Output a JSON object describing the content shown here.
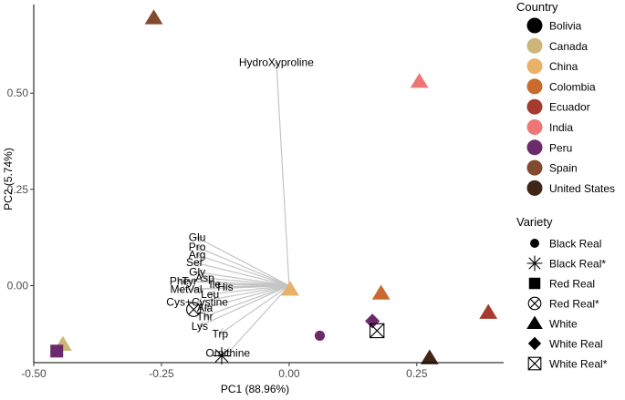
{
  "chart_data": {
    "type": "scatter",
    "title": "",
    "xlabel": "PC1 (88.96%)",
    "ylabel": "PC2 (5.74%)",
    "xlim": [
      -0.5,
      0.42
    ],
    "ylim": [
      -0.2,
      0.73
    ],
    "x_ticks": [
      {
        "value": -0.5,
        "label": "-0.50"
      },
      {
        "value": -0.25,
        "label": "-0.25"
      },
      {
        "value": 0.0,
        "label": "0.00"
      },
      {
        "value": 0.25,
        "label": "0.25"
      }
    ],
    "y_ticks": [
      {
        "value": 0.0,
        "label": "0.00"
      },
      {
        "value": 0.25,
        "label": "0.25"
      },
      {
        "value": 0.5,
        "label": "0.50"
      }
    ],
    "grid": false,
    "legend_placement": "right",
    "points": [
      {
        "country": "Spain",
        "variety": "White",
        "x": -0.265,
        "y": 0.695
      },
      {
        "country": "India",
        "variety": "White",
        "x": 0.255,
        "y": 0.53
      },
      {
        "country": "China",
        "variety": "White",
        "x": 0.002,
        "y": -0.01
      },
      {
        "country": "Colombia",
        "variety": "White",
        "x": 0.18,
        "y": -0.02
      },
      {
        "country": "Ecuador",
        "variety": "White",
        "x": 0.39,
        "y": -0.07
      },
      {
        "country": "Canada",
        "variety": "White",
        "x": -0.443,
        "y": -0.153
      },
      {
        "country": "Peru",
        "variety": "Red Real",
        "x": -0.455,
        "y": -0.17
      },
      {
        "country": "Peru",
        "variety": "Black Real",
        "x": 0.06,
        "y": -0.13
      },
      {
        "country": "Peru",
        "variety": "White Real",
        "x": 0.163,
        "y": -0.092
      },
      {
        "country": "Bolivia",
        "variety": "White Real*",
        "x": 0.172,
        "y": -0.117
      },
      {
        "country": "United States",
        "variety": "White",
        "x": 0.275,
        "y": -0.188
      },
      {
        "country": "Bolivia",
        "variety": "Red Real*",
        "x": -0.187,
        "y": -0.062
      },
      {
        "country": "Bolivia",
        "variety": "Black Real*",
        "x": -0.132,
        "y": -0.182
      }
    ],
    "loadings": [
      {
        "label": "HydroXyproline",
        "x": -0.025,
        "y": 0.58
      },
      {
        "label": "Glu",
        "x": -0.18,
        "y": 0.125
      },
      {
        "label": "Pro",
        "x": -0.18,
        "y": 0.1
      },
      {
        "label": "Arg",
        "x": -0.18,
        "y": 0.08
      },
      {
        "label": "Ser",
        "x": -0.185,
        "y": 0.06
      },
      {
        "label": "Gly",
        "x": -0.18,
        "y": 0.035
      },
      {
        "label": "Asp",
        "x": -0.165,
        "y": 0.02
      },
      {
        "label": "Phe",
        "x": -0.215,
        "y": 0.012
      },
      {
        "label": "Tyr",
        "x": -0.195,
        "y": 0.012
      },
      {
        "label": "Ile",
        "x": -0.145,
        "y": 0.003
      },
      {
        "label": "His",
        "x": -0.125,
        "y": -0.003
      },
      {
        "label": "Met",
        "x": -0.215,
        "y": -0.01
      },
      {
        "label": "Val",
        "x": -0.185,
        "y": -0.01
      },
      {
        "label": "Leu",
        "x": -0.155,
        "y": -0.022
      },
      {
        "label": "Cys+Cystine",
        "x": -0.18,
        "y": -0.043
      },
      {
        "label": "Ala",
        "x": -0.165,
        "y": -0.058
      },
      {
        "label": "Thr",
        "x": -0.165,
        "y": -0.08
      },
      {
        "label": "Lys",
        "x": -0.175,
        "y": -0.105
      },
      {
        "label": "Trp",
        "x": -0.135,
        "y": -0.125
      },
      {
        "label": "Ornithine",
        "x": -0.12,
        "y": -0.175
      }
    ],
    "legend": {
      "country_title": "Country",
      "countries": [
        {
          "name": "Bolivia",
          "color": "#000000"
        },
        {
          "name": "Canada",
          "color": "#CDB677"
        },
        {
          "name": "China",
          "color": "#E9B26A"
        },
        {
          "name": "Colombia",
          "color": "#C96A2E"
        },
        {
          "name": "Ecuador",
          "color": "#A63A2E"
        },
        {
          "name": "India",
          "color": "#EE7676"
        },
        {
          "name": "Peru",
          "color": "#6B2A6B"
        },
        {
          "name": "Spain",
          "color": "#844A30"
        },
        {
          "name": "United States",
          "color": "#3F2616"
        }
      ],
      "variety_title": "Variety",
      "varieties": [
        {
          "name": "Black Real",
          "shape": "circle"
        },
        {
          "name": "Black Real*",
          "shape": "asterisk"
        },
        {
          "name": "Red Real",
          "shape": "square"
        },
        {
          "name": "Red Real*",
          "shape": "circle-cross"
        },
        {
          "name": "White",
          "shape": "triangle"
        },
        {
          "name": "White Real",
          "shape": "diamond"
        },
        {
          "name": "White Real*",
          "shape": "square-cross"
        }
      ]
    }
  }
}
